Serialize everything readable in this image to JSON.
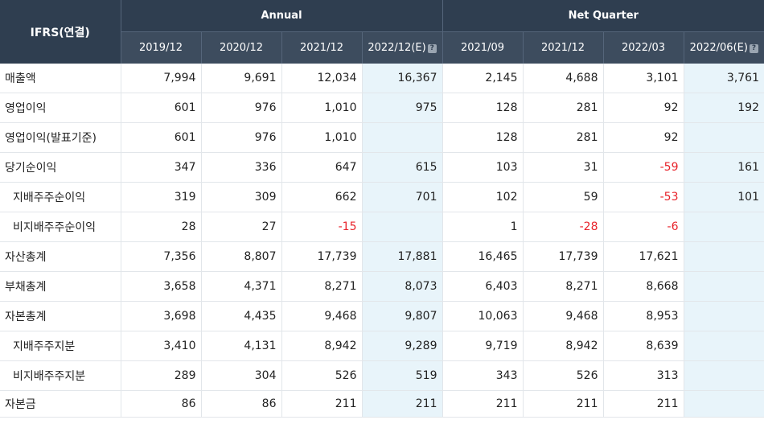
{
  "header": {
    "ifrs_label": "IFRS(연결)",
    "annual_label": "Annual",
    "quarter_label": "Net Quarter",
    "periods": [
      "2019/12",
      "2020/12",
      "2021/12",
      "2022/12(E)",
      "2021/09",
      "2021/12",
      "2022/03",
      "2022/06(E)"
    ],
    "info_icon_glyph": "?"
  },
  "rows": [
    {
      "label": "매출액",
      "sub": false,
      "values": [
        "7,994",
        "9,691",
        "12,034",
        "16,367",
        "2,145",
        "4,688",
        "3,101",
        "3,761"
      ]
    },
    {
      "label": "영업이익",
      "sub": false,
      "values": [
        "601",
        "976",
        "1,010",
        "975",
        "128",
        "281",
        "92",
        "192"
      ]
    },
    {
      "label": "영업이익(발표기준)",
      "sub": false,
      "values": [
        "601",
        "976",
        "1,010",
        "",
        "128",
        "281",
        "92",
        ""
      ]
    },
    {
      "label": "당기순이익",
      "sub": false,
      "values": [
        "347",
        "336",
        "647",
        "615",
        "103",
        "31",
        "-59",
        "161"
      ]
    },
    {
      "label": "지배주주순이익",
      "sub": true,
      "values": [
        "319",
        "309",
        "662",
        "701",
        "102",
        "59",
        "-53",
        "101"
      ]
    },
    {
      "label": "비지배주주순이익",
      "sub": true,
      "values": [
        "28",
        "27",
        "-15",
        "",
        "1",
        "-28",
        "-6",
        ""
      ]
    },
    {
      "label": "자산총계",
      "sub": false,
      "values": [
        "7,356",
        "8,807",
        "17,739",
        "17,881",
        "16,465",
        "17,739",
        "17,621",
        ""
      ]
    },
    {
      "label": "부채총계",
      "sub": false,
      "values": [
        "3,658",
        "4,371",
        "8,271",
        "8,073",
        "6,403",
        "8,271",
        "8,668",
        ""
      ]
    },
    {
      "label": "자본총계",
      "sub": false,
      "values": [
        "3,698",
        "4,435",
        "9,468",
        "9,807",
        "10,063",
        "9,468",
        "8,953",
        ""
      ]
    },
    {
      "label": "지배주주지분",
      "sub": true,
      "values": [
        "3,410",
        "4,131",
        "8,942",
        "9,289",
        "9,719",
        "8,942",
        "8,639",
        ""
      ]
    },
    {
      "label": "비지배주주지분",
      "sub": true,
      "values": [
        "289",
        "304",
        "526",
        "519",
        "343",
        "526",
        "313",
        ""
      ]
    },
    {
      "label": "자본금",
      "sub": false,
      "values": [
        "86",
        "86",
        "211",
        "211",
        "211",
        "211",
        "211",
        ""
      ]
    }
  ],
  "colors": {
    "header_bg": "#2f3e50",
    "estimate_bg": "#e8f4fa",
    "negative": "#e8232b"
  }
}
